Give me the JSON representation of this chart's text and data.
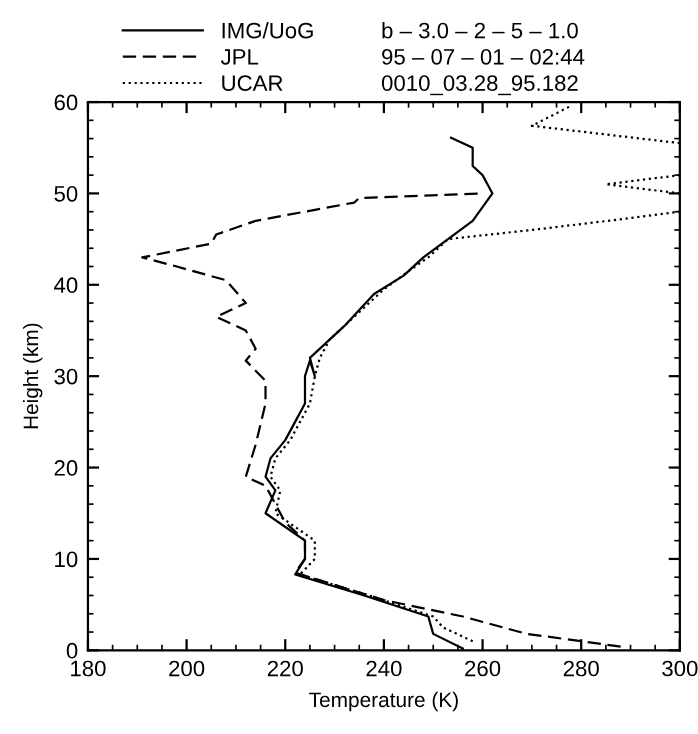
{
  "chart_data": {
    "type": "line",
    "xlabel": "Temperature (K)",
    "ylabel": "Height (km)",
    "xlim": [
      180,
      300
    ],
    "ylim": [
      0,
      60
    ],
    "xticks": [
      180,
      200,
      220,
      240,
      260,
      280,
      300
    ],
    "yticks": [
      0,
      10,
      20,
      30,
      40,
      50,
      60
    ],
    "grid": false,
    "legend": "top",
    "marker": "none",
    "annotations": [
      "b – 3.0 – 2 – 5 – 1.0",
      "95 – 07 – 01 – 02:44",
      "0010_03.28_95.182"
    ],
    "series": [
      {
        "name": "IMG/UoG",
        "color": "#000000",
        "line_style": "solid",
        "x": [
          256,
          250,
          249,
          236,
          222,
          224,
          224,
          216,
          218,
          216,
          217,
          220,
          222,
          224,
          224,
          225,
          226,
          225,
          232,
          238,
          244,
          248,
          253,
          258,
          262,
          261,
          260,
          258,
          258,
          253.6
        ],
        "values": [
          0.2,
          1.8,
          3.7,
          6,
          8.3,
          10,
          12,
          15,
          17.5,
          19,
          21,
          23,
          25,
          27,
          30,
          31.7,
          30,
          32,
          35.5,
          39,
          41,
          43,
          45,
          47,
          50,
          51,
          52,
          53,
          55,
          56.1
        ]
      },
      {
        "name": "JPL",
        "color": "#000000",
        "line_style": "dashed",
        "x": [
          288,
          280,
          269,
          256,
          240,
          228,
          222,
          224,
          224,
          220,
          216,
          212,
          214,
          216,
          216,
          212,
          214,
          212,
          206,
          212,
          208,
          198,
          191,
          205,
          206,
          214,
          234,
          235,
          260
        ],
        "values": [
          0.4,
          1,
          1.8,
          3.7,
          5.5,
          7.5,
          8.5,
          10,
          12,
          14,
          18,
          19,
          22.5,
          27,
          29.5,
          31.7,
          33,
          35,
          36.5,
          38,
          40.5,
          42,
          43,
          44.5,
          45.5,
          47,
          49,
          49.5,
          50
        ]
      },
      {
        "name": "UCAR",
        "color": "#000000",
        "line_style": "dotted",
        "x": [
          258,
          252,
          250,
          237,
          223,
          226,
          226,
          218,
          219,
          217,
          218,
          221,
          223,
          225,
          226,
          227,
          229,
          235,
          240,
          245,
          249,
          253,
          270,
          290,
          300,
          null,
          300,
          285,
          300,
          null,
          300,
          270,
          278
        ],
        "values": [
          1,
          2.5,
          3.7,
          6,
          8.3,
          10,
          12,
          15,
          17.5,
          19,
          21,
          23,
          25,
          27,
          30,
          32,
          34,
          37,
          39.5,
          41.5,
          43,
          45,
          46,
          47.3,
          48,
          null,
          50,
          51,
          52,
          null,
          55.5,
          57.4,
          59.6
        ]
      }
    ]
  }
}
